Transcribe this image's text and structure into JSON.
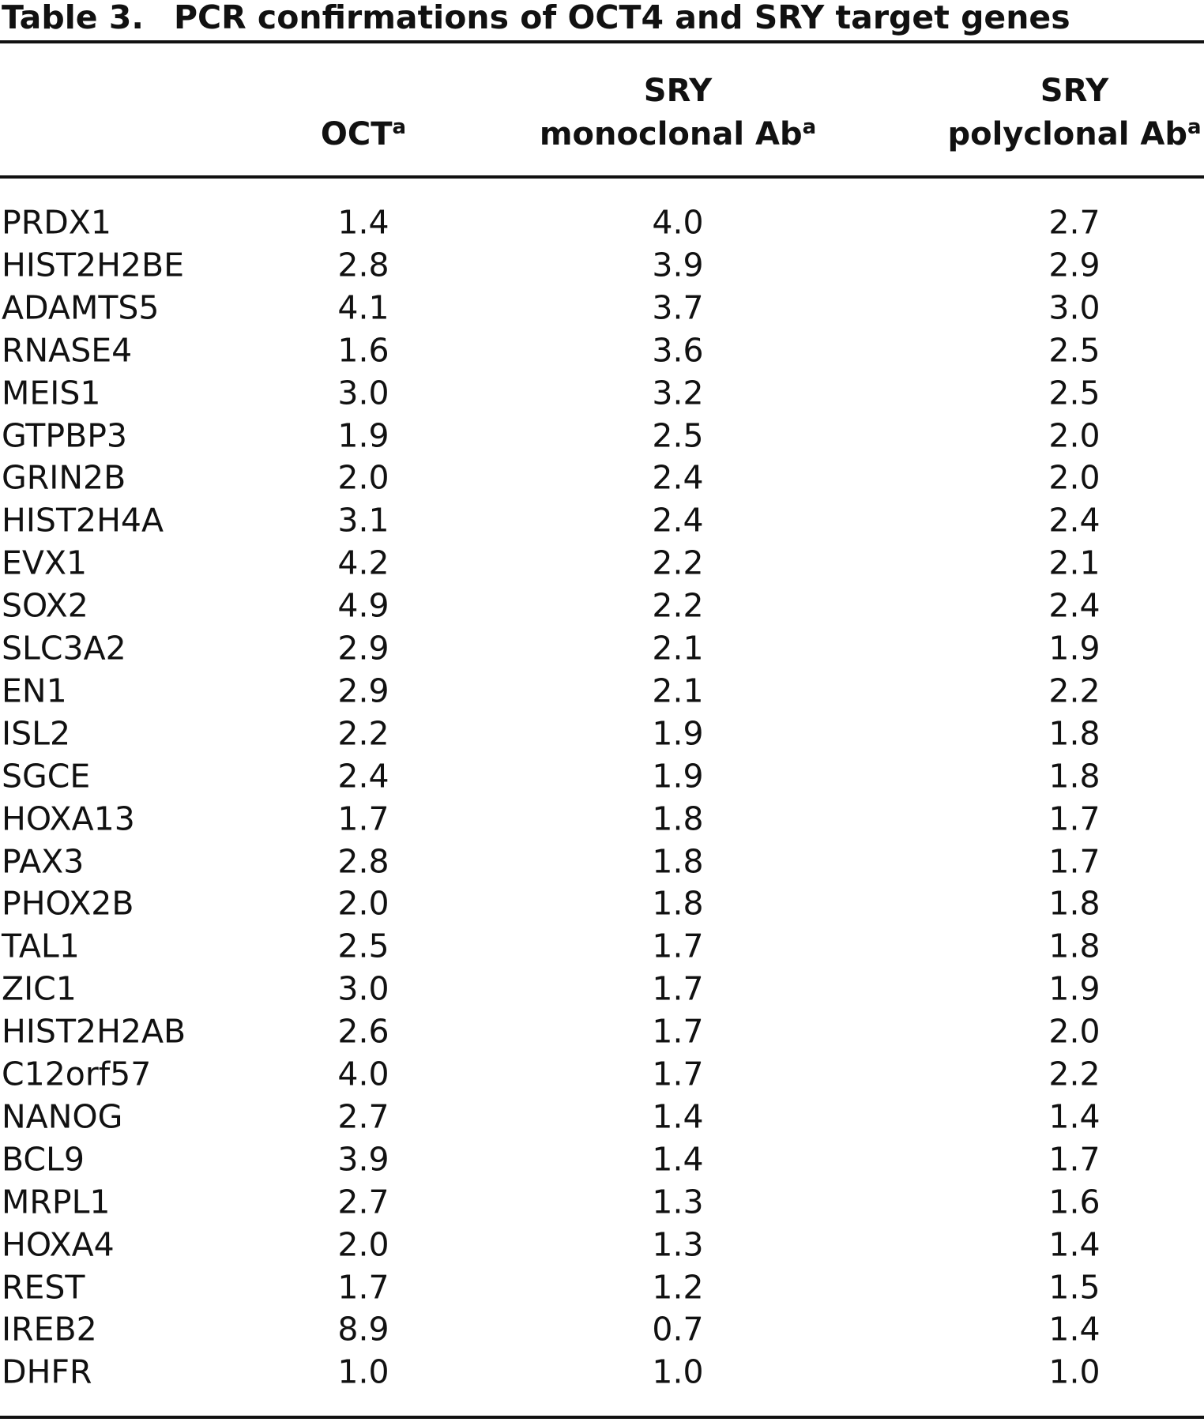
{
  "title": {
    "label": "Table 3.",
    "text": "PCR confirmations of OCT4 and SRY target genes"
  },
  "table": {
    "columns": [
      {
        "lines": [
          "OCT"
        ],
        "sup": "a"
      },
      {
        "lines": [
          "SRY",
          "monoclonal Ab"
        ],
        "sup": "a"
      },
      {
        "lines": [
          "SRY",
          "polyclonal Ab"
        ],
        "sup": "a"
      }
    ],
    "rows": [
      [
        "PRDX1",
        "1.4",
        "4.0",
        "2.7"
      ],
      [
        "HIST2H2BE",
        "2.8",
        "3.9",
        "2.9"
      ],
      [
        "ADAMTS5",
        "4.1",
        "3.7",
        "3.0"
      ],
      [
        "RNASE4",
        "1.6",
        "3.6",
        "2.5"
      ],
      [
        "MEIS1",
        "3.0",
        "3.2",
        "2.5"
      ],
      [
        "GTPBP3",
        "1.9",
        "2.5",
        "2.0"
      ],
      [
        "GRIN2B",
        "2.0",
        "2.4",
        "2.0"
      ],
      [
        "HIST2H4A",
        "3.1",
        "2.4",
        "2.4"
      ],
      [
        "EVX1",
        "4.2",
        "2.2",
        "2.1"
      ],
      [
        "SOX2",
        "4.9",
        "2.2",
        "2.4"
      ],
      [
        "SLC3A2",
        "2.9",
        "2.1",
        "1.9"
      ],
      [
        "EN1",
        "2.9",
        "2.1",
        "2.2"
      ],
      [
        "ISL2",
        "2.2",
        "1.9",
        "1.8"
      ],
      [
        "SGCE",
        "2.4",
        "1.9",
        "1.8"
      ],
      [
        "HOXA13",
        "1.7",
        "1.8",
        "1.7"
      ],
      [
        "PAX3",
        "2.8",
        "1.8",
        "1.7"
      ],
      [
        "PHOX2B",
        "2.0",
        "1.8",
        "1.8"
      ],
      [
        "TAL1",
        "2.5",
        "1.7",
        "1.8"
      ],
      [
        "ZIC1",
        "3.0",
        "1.7",
        "1.9"
      ],
      [
        "HIST2H2AB",
        "2.6",
        "1.7",
        "2.0"
      ],
      [
        "C12orf57",
        "4.0",
        "1.7",
        "2.2"
      ],
      [
        "NANOG",
        "2.7",
        "1.4",
        "1.4"
      ],
      [
        "BCL9",
        "3.9",
        "1.4",
        "1.7"
      ],
      [
        "MRPL1",
        "2.7",
        "1.3",
        "1.6"
      ],
      [
        "HOXA4",
        "2.0",
        "1.3",
        "1.4"
      ],
      [
        "REST",
        "1.7",
        "1.2",
        "1.5"
      ],
      [
        "IREB2",
        "8.9",
        "0.7",
        "1.4"
      ],
      [
        "DHFR",
        "1.0",
        "1.0",
        "1.0"
      ]
    ]
  }
}
